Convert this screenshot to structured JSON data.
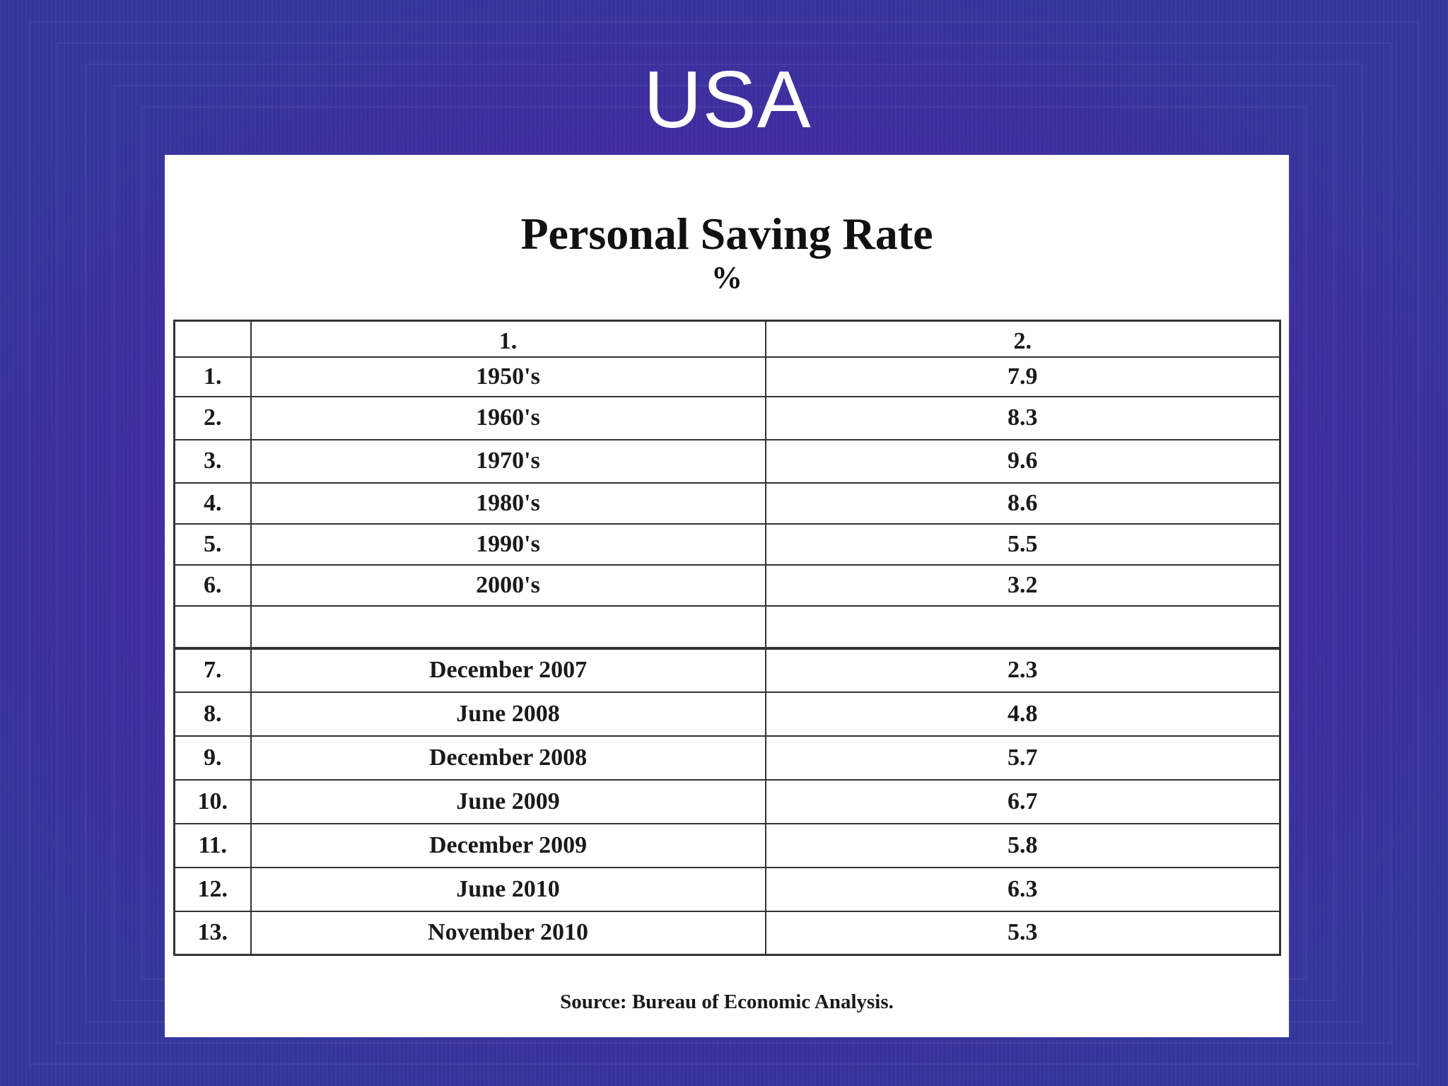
{
  "slide": {
    "title": "USA"
  },
  "document": {
    "title": "Personal Saving Rate",
    "unit": "%",
    "table": {
      "columns": [
        "",
        "1.",
        "2."
      ],
      "rows": [
        {
          "num": "1.",
          "period": "1950's",
          "rate": "7.9"
        },
        {
          "num": "2.",
          "period": "1960's",
          "rate": "8.3"
        },
        {
          "num": "3.",
          "period": "1970's",
          "rate": "9.6"
        },
        {
          "num": "4.",
          "period": "1980's",
          "rate": "8.6"
        },
        {
          "num": "5.",
          "period": "1990's",
          "rate": "5.5"
        },
        {
          "num": "6.",
          "period": "2000's",
          "rate": "3.2"
        },
        {
          "num": "",
          "period": "",
          "rate": ""
        },
        {
          "num": "7.",
          "period": "December 2007",
          "rate": "2.3"
        },
        {
          "num": "8.",
          "period": "June 2008",
          "rate": "4.8"
        },
        {
          "num": "9.",
          "period": "December 2008",
          "rate": "5.7"
        },
        {
          "num": "10.",
          "period": "June 2009",
          "rate": "6.7"
        },
        {
          "num": "11.",
          "period": "December 2009",
          "rate": "5.8"
        },
        {
          "num": "12.",
          "period": "June 2010",
          "rate": "6.3"
        },
        {
          "num": "13.",
          "period": "November 2010",
          "rate": "5.3"
        }
      ]
    },
    "source": "Source: Bureau of Economic Analysis."
  }
}
